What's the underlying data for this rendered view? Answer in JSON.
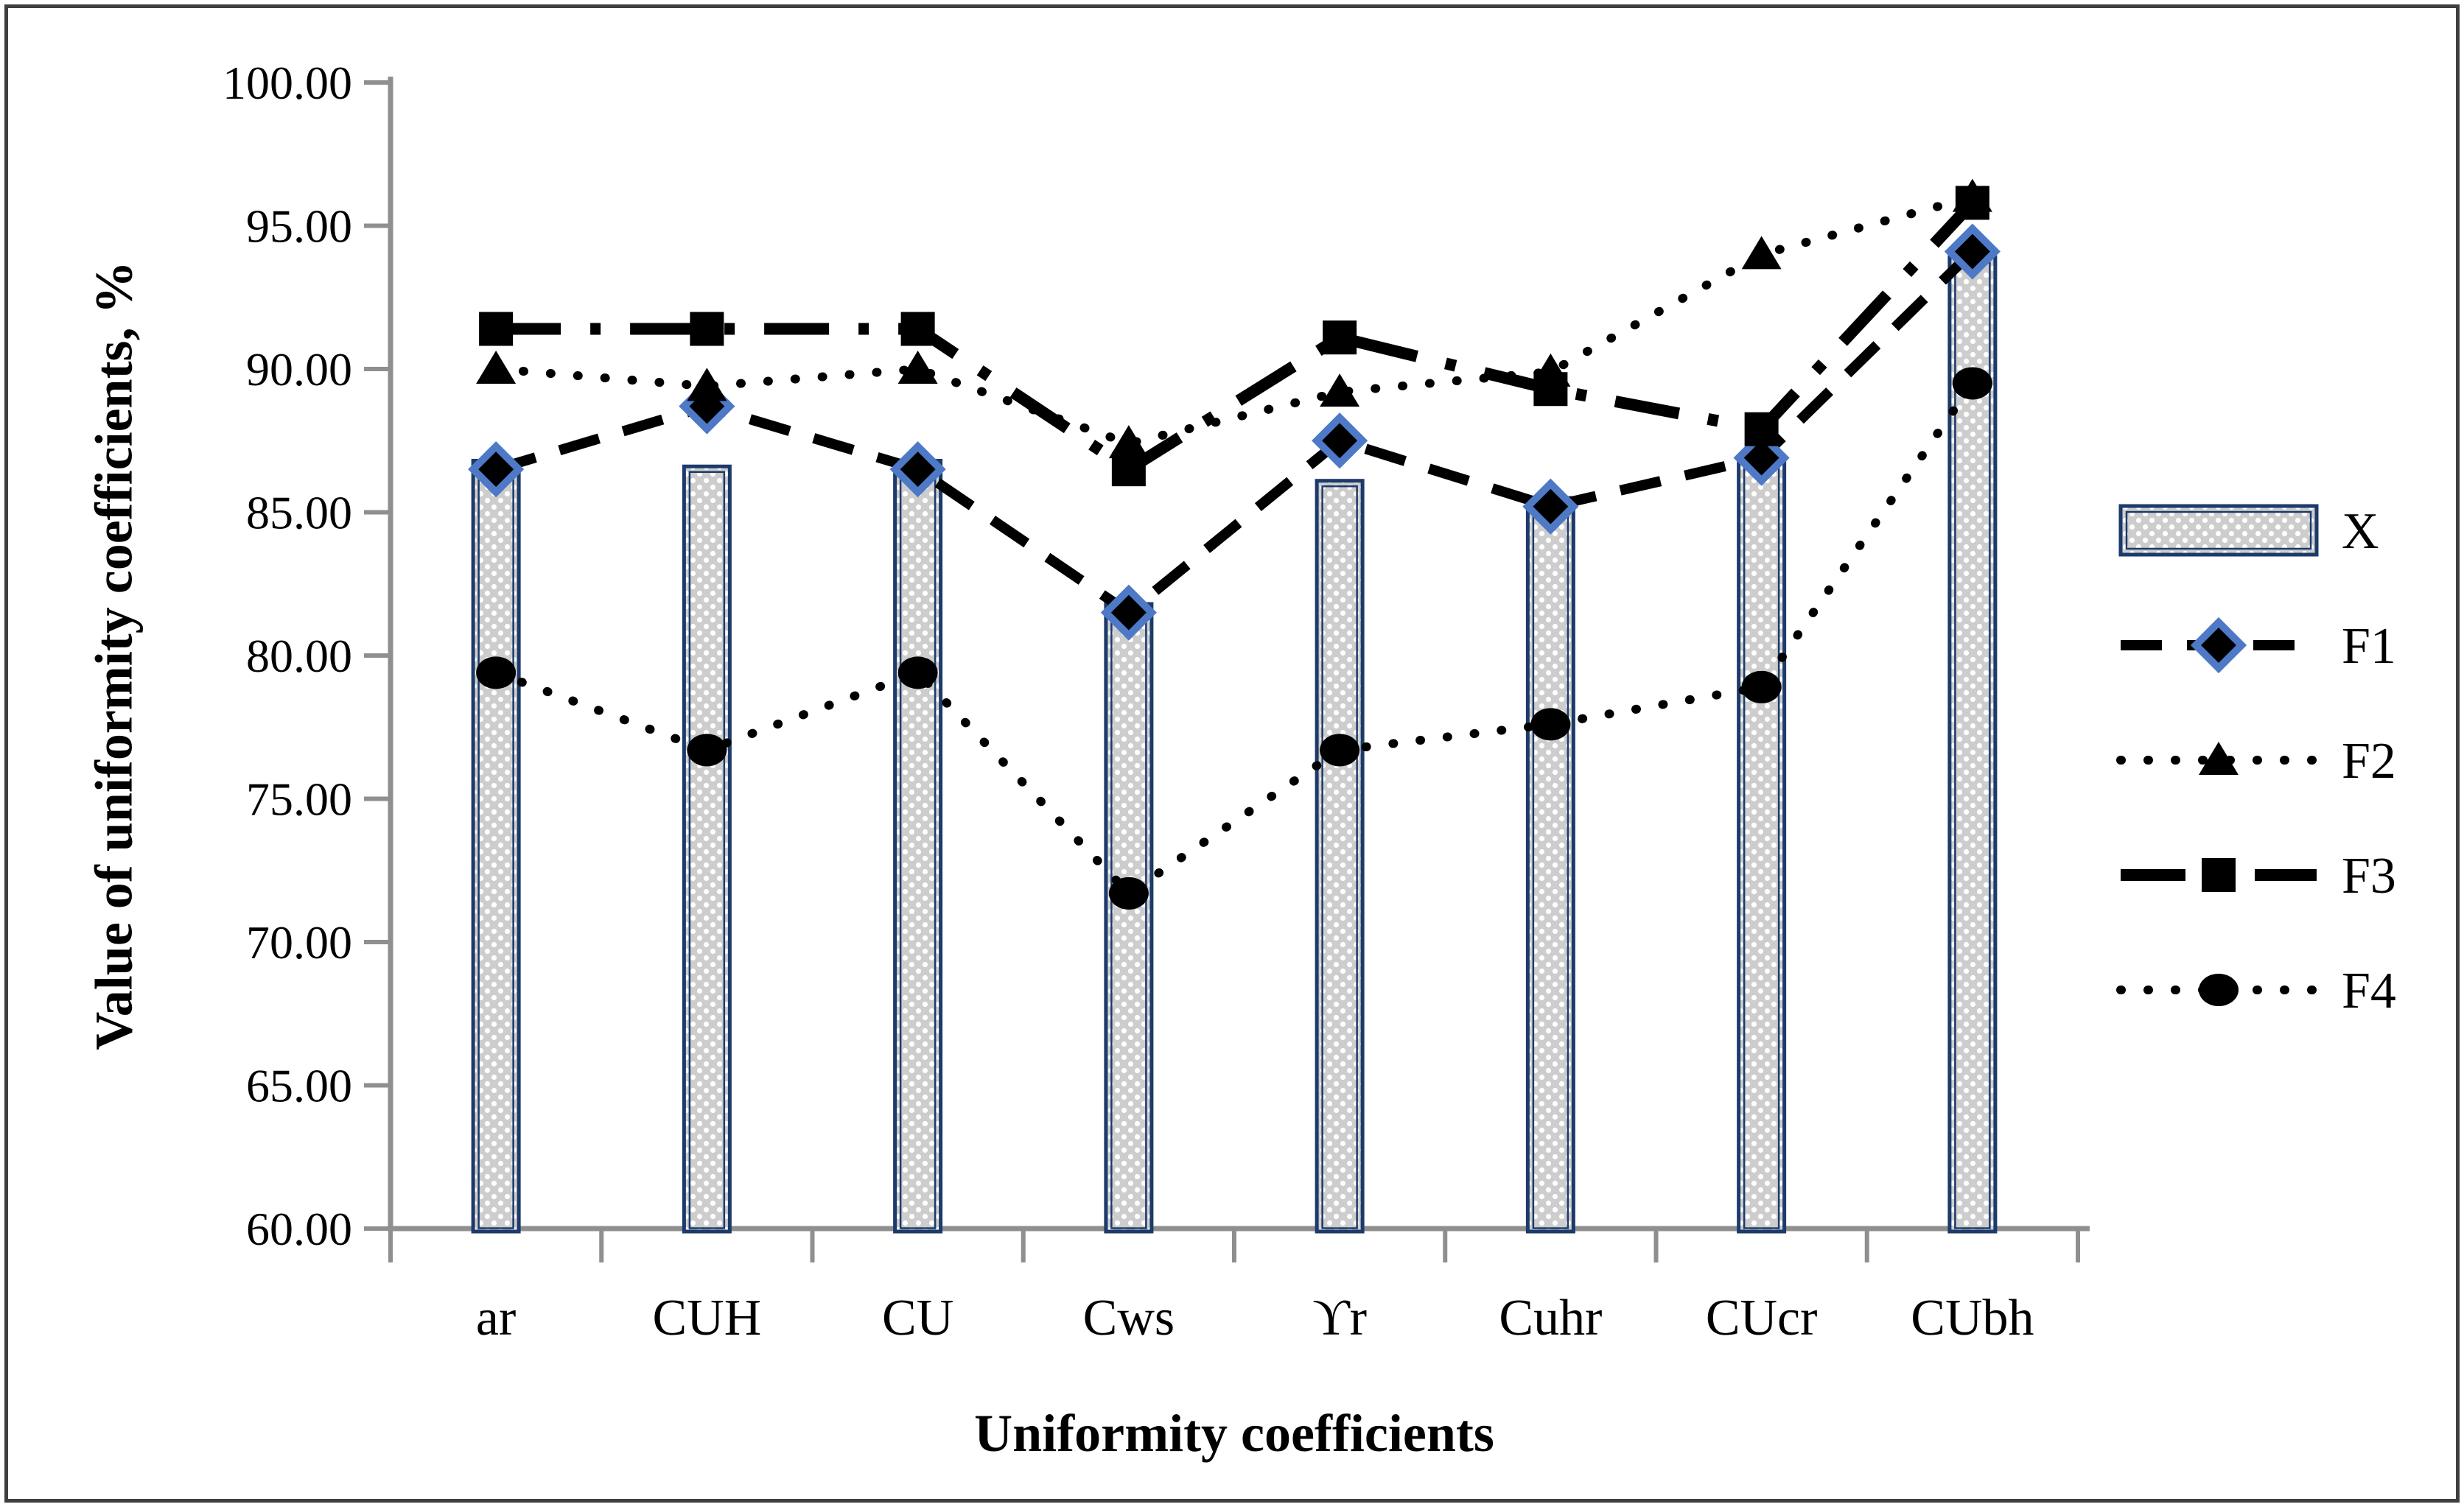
{
  "figure": {
    "background": "#ffffff",
    "border_color": "#3f3f3f"
  },
  "y_axis": {
    "title": "Value of uniformity coefficients, %",
    "min": 60,
    "max": 100,
    "step": 5,
    "tick_labels": [
      "100.00",
      "95.00",
      "90.00",
      "85.00",
      "80.00",
      "75.00",
      "70.00",
      "65.00",
      "60.00"
    ]
  },
  "x_axis": {
    "title": "Uniformity coefficients",
    "categories": [
      "ar",
      "CUH",
      "CU",
      "Cws",
      "ϒr",
      "Cuhr",
      "CUcr",
      "CUbh"
    ]
  },
  "legend": {
    "position": "right",
    "items": [
      {
        "label": "X",
        "type": "bar-swatch",
        "marker": "none",
        "dash": "none"
      },
      {
        "label": "F1",
        "type": "line",
        "marker": "diamond",
        "dash": "dashed"
      },
      {
        "label": "F2",
        "type": "line",
        "marker": "triangle",
        "dash": "dotted"
      },
      {
        "label": "F3",
        "type": "line",
        "marker": "square",
        "dash": "dash-dot"
      },
      {
        "label": "F4",
        "type": "line",
        "marker": "circle",
        "dash": "dotted"
      }
    ]
  },
  "colors": {
    "marker_black": "#000000",
    "diamond_outline_blue": "#4e79c6",
    "bar_fill_gray": "#cdcdcd",
    "bar_dot_white": "#ffffff",
    "bar_border_navy": "#1c3a6a",
    "axis_gray": "#8f8f8f",
    "text_black": "#000000"
  },
  "chart_data": {
    "type": "combo-bar-line",
    "categories": [
      "ar",
      "CUH",
      "CU",
      "Cws",
      "ϒr",
      "Cuhr",
      "CUcr",
      "CUbh"
    ],
    "series": [
      {
        "name": "X",
        "type": "bar",
        "marker": "none",
        "dash": "none",
        "values": [
          86.8,
          86.6,
          86.8,
          81.8,
          86.1,
          85.5,
          86.9,
          93.9
        ]
      },
      {
        "name": "F1",
        "type": "line",
        "marker": "diamond",
        "dash": "dashed",
        "values": [
          86.5,
          88.7,
          86.5,
          81.5,
          87.5,
          85.2,
          86.9,
          94.1
        ]
      },
      {
        "name": "F2",
        "type": "line",
        "marker": "triangle",
        "dash": "dotted",
        "values": [
          90.0,
          89.4,
          90.0,
          87.4,
          89.2,
          89.9,
          94.0,
          96.0
        ]
      },
      {
        "name": "F3",
        "type": "line",
        "marker": "square",
        "dash": "dash-dot",
        "values": [
          91.4,
          91.4,
          91.4,
          86.5,
          91.1,
          89.3,
          87.9,
          95.8
        ]
      },
      {
        "name": "F4",
        "type": "line",
        "marker": "circle",
        "dash": "dotted",
        "values": [
          79.4,
          76.7,
          79.4,
          71.7,
          76.7,
          77.6,
          78.9,
          89.5
        ]
      }
    ],
    "title": "",
    "xlabel": "Uniformity coefficients",
    "ylabel": "Value of uniformity coefficients, %",
    "ylim": [
      60,
      100
    ],
    "y_tick_step": 5,
    "grid": false,
    "legend_position": "right"
  }
}
